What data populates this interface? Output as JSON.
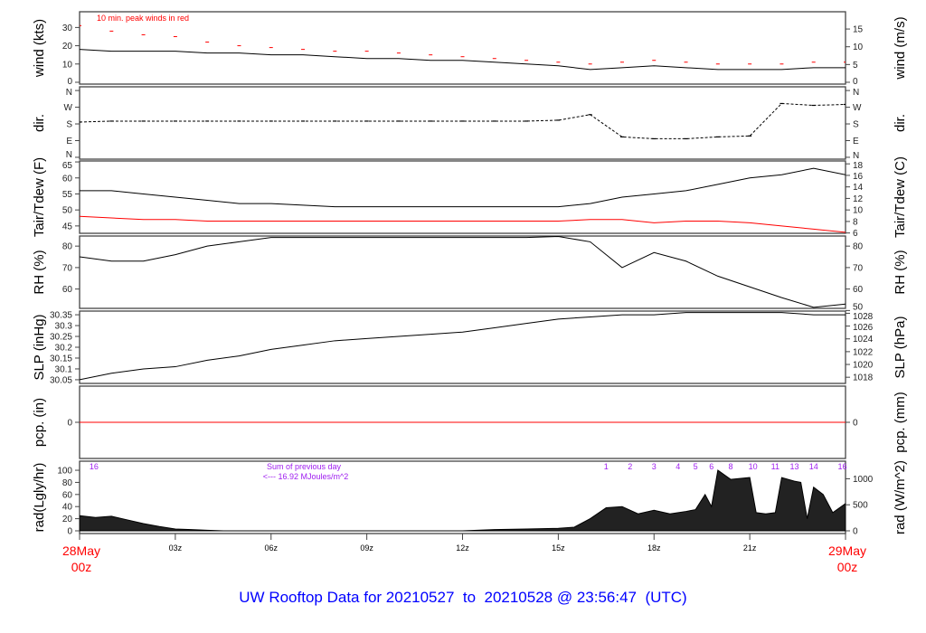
{
  "title": "UW Rooftop Data for 20210527  to  20210528 @ 23:56:47  (UTC)",
  "colors": {
    "title": "#0000ff",
    "date_labels": "#ff0000",
    "gust": "#ff0000",
    "tdew": "#ff0000",
    "pcp": "#ff0000",
    "rad_annot": "#a020f0",
    "series": "#000000"
  },
  "x_axis": {
    "ticks": [
      {
        "h": 0,
        "label": ""
      },
      {
        "h": 3,
        "label": "03z"
      },
      {
        "h": 6,
        "label": "06z"
      },
      {
        "h": 9,
        "label": "09z"
      },
      {
        "h": 12,
        "label": "12z"
      },
      {
        "h": 15,
        "label": "15z"
      },
      {
        "h": 18,
        "label": "18z"
      },
      {
        "h": 21,
        "label": "21z"
      },
      {
        "h": 24,
        "label": ""
      }
    ],
    "start_date": "28May",
    "start_time": "00z",
    "end_date": "29May",
    "end_time": "00z"
  },
  "chart_data": [
    {
      "id": "wind",
      "type": "line",
      "ylabel": "wind (kts)",
      "ylabel_right": "wind (m/s)",
      "ylim": [
        -1,
        38.6
      ],
      "yticks": [
        0,
        10,
        20,
        30
      ],
      "yticks_right": [
        0,
        5,
        10,
        15
      ],
      "annotation": "10 min. peak winds in red",
      "x_hours": [
        0,
        1,
        2,
        3,
        4,
        5,
        6,
        7,
        8,
        9,
        10,
        11,
        12,
        13,
        14,
        15,
        16,
        17,
        18,
        19,
        20,
        21,
        22,
        23,
        24
      ],
      "series": [
        {
          "key": "speed",
          "values": [
            18,
            17,
            17,
            17,
            16,
            16,
            15,
            15,
            14,
            13,
            13,
            12,
            12,
            11,
            10,
            9,
            7,
            8,
            9,
            8,
            7,
            7,
            7,
            8,
            8
          ]
        },
        {
          "key": "gust",
          "values": [
            31,
            28,
            26,
            25,
            22,
            20,
            19,
            18,
            17,
            17,
            16,
            15,
            14,
            13,
            12,
            11,
            10,
            11,
            12,
            11,
            10,
            10,
            10,
            11,
            11
          ]
        }
      ]
    },
    {
      "id": "dir",
      "type": "scatter",
      "ylabel": "dir.",
      "ylabel_right": "dir.",
      "ylim": [
        -10,
        380
      ],
      "yticks": [
        {
          "v": 0,
          "l": "N"
        },
        {
          "v": 90,
          "l": "E"
        },
        {
          "v": 180,
          "l": "S"
        },
        {
          "v": 270,
          "l": "W"
        },
        {
          "v": 360,
          "l": "N"
        }
      ],
      "x_hours": [
        0,
        1,
        2,
        3,
        4,
        5,
        6,
        7,
        8,
        9,
        10,
        11,
        12,
        13,
        14,
        15,
        16,
        17,
        18,
        19,
        20,
        21,
        22,
        23,
        24
      ],
      "series": [
        {
          "key": "dir",
          "values": [
            190,
            195,
            195,
            195,
            195,
            195,
            195,
            195,
            195,
            195,
            195,
            195,
            195,
            195,
            195,
            200,
            230,
            110,
            100,
            100,
            110,
            115,
            290,
            280,
            285
          ]
        }
      ]
    },
    {
      "id": "temp",
      "type": "line",
      "ylabel": "Tair/Tdew (F)",
      "ylabel_right": "Tair/Tdew (C)",
      "ylim": [
        42.7,
        65.3
      ],
      "yticks": [
        45,
        50,
        55,
        60,
        65
      ],
      "yticks_right": [
        6,
        8,
        10,
        12,
        14,
        16,
        18
      ],
      "x_hours": [
        0,
        1,
        2,
        3,
        4,
        5,
        6,
        7,
        8,
        9,
        10,
        11,
        12,
        13,
        14,
        15,
        16,
        17,
        18,
        19,
        20,
        21,
        22,
        23,
        24
      ],
      "series": [
        {
          "key": "tair",
          "values": [
            56,
            56,
            55,
            54,
            53,
            52,
            52,
            51.5,
            51,
            51,
            51,
            51,
            51,
            51,
            51,
            51,
            52,
            54,
            55,
            56,
            58,
            60,
            61,
            63,
            61
          ]
        },
        {
          "key": "tdew",
          "values": [
            48,
            47.5,
            47,
            47,
            46.5,
            46.5,
            46.5,
            46.5,
            46.5,
            46.5,
            46.5,
            46.5,
            46.5,
            46.5,
            46.5,
            46.5,
            47,
            47,
            46,
            46.5,
            46.5,
            46,
            45,
            44,
            43
          ]
        }
      ]
    },
    {
      "id": "rh",
      "type": "line",
      "ylabel": "RH (%)",
      "ylabel_right": "RH (%)",
      "ylim": [
        51,
        84.7
      ],
      "yticks": [
        60,
        70,
        80
      ],
      "yticks_right": [
        50,
        60,
        70,
        80
      ],
      "x_hours": [
        0,
        1,
        2,
        3,
        4,
        5,
        6,
        7,
        8,
        9,
        10,
        11,
        12,
        13,
        14,
        15,
        16,
        17,
        18,
        19,
        20,
        21,
        22,
        23,
        24
      ],
      "series": [
        {
          "key": "rh",
          "values": [
            75,
            73,
            73,
            76,
            80,
            82,
            84,
            84,
            84,
            84,
            84,
            84,
            84,
            84,
            84,
            84.5,
            82,
            70,
            77,
            73,
            66,
            61,
            56,
            51.5,
            53
          ]
        }
      ]
    },
    {
      "id": "slp",
      "type": "line",
      "ylabel": "SLP (inHg)",
      "ylabel_right": "SLP (hPa)",
      "ylim": [
        30.033,
        30.367
      ],
      "yticks": [
        30.05,
        30.1,
        30.15,
        30.2,
        30.25,
        30.3,
        30.35
      ],
      "yticks_right": [
        1018,
        1020,
        1022,
        1024,
        1026,
        1028
      ],
      "x_hours": [
        0,
        1,
        2,
        3,
        4,
        5,
        6,
        7,
        8,
        9,
        10,
        11,
        12,
        13,
        14,
        15,
        16,
        17,
        18,
        19,
        20,
        21,
        22,
        23,
        24
      ],
      "series": [
        {
          "key": "slp",
          "values": [
            30.05,
            30.08,
            30.1,
            30.11,
            30.14,
            30.16,
            30.19,
            30.21,
            30.23,
            30.24,
            30.25,
            30.26,
            30.27,
            30.29,
            30.31,
            30.33,
            30.34,
            30.35,
            30.35,
            30.36,
            30.36,
            30.36,
            30.36,
            30.35,
            30.35
          ]
        }
      ]
    },
    {
      "id": "pcp",
      "type": "line",
      "ylabel": "pcp. (in)",
      "ylabel_right": "pcp. (mm)",
      "ylim": [
        -1,
        1
      ],
      "yticks": [
        0
      ],
      "yticks_right": [
        0
      ],
      "x_hours": [
        0,
        24
      ],
      "series": [
        {
          "key": "pcp",
          "values": [
            0,
            0
          ]
        }
      ]
    },
    {
      "id": "rad",
      "type": "area",
      "ylabel": "rad(Lgly/hr)",
      "ylabel_right": "rad (W/m^2)",
      "ylim": [
        -4.5,
        115
      ],
      "yticks": [
        0,
        20,
        40,
        60,
        80,
        100
      ],
      "yticks_right": [
        0,
        500,
        1000
      ],
      "x_hours": [
        0,
        0.5,
        1,
        1.5,
        2,
        2.5,
        3,
        3.5,
        4,
        4.5,
        12,
        13,
        14,
        15,
        15.5,
        16,
        16.5,
        17,
        17.5,
        18,
        18.5,
        19,
        19.3,
        19.6,
        19.8,
        20,
        20.4,
        21,
        21.2,
        21.5,
        21.8,
        22,
        22.4,
        22.6,
        22.8,
        23,
        23.3,
        23.6,
        24
      ],
      "series": [
        {
          "key": "rad",
          "values": [
            25,
            22,
            24,
            18,
            12,
            7,
            3,
            2,
            1,
            0,
            0,
            2,
            3,
            4,
            6,
            20,
            38,
            40,
            28,
            34,
            28,
            32,
            35,
            60,
            40,
            100,
            85,
            88,
            30,
            28,
            30,
            88,
            82,
            80,
            20,
            72,
            60,
            30,
            45
          ]
        }
      ],
      "hour_marks": [
        {
          "h": 0.45,
          "l": "16"
        },
        {
          "h": 16.5,
          "l": "1"
        },
        {
          "h": 17.25,
          "l": "2"
        },
        {
          "h": 18,
          "l": "3"
        },
        {
          "h": 18.75,
          "l": "4"
        },
        {
          "h": 19.3,
          "l": "5"
        },
        {
          "h": 19.8,
          "l": "6"
        },
        {
          "h": 20.4,
          "l": "8"
        },
        {
          "h": 21.1,
          "l": "10"
        },
        {
          "h": 21.8,
          "l": "11"
        },
        {
          "h": 22.4,
          "l": "13"
        },
        {
          "h": 23,
          "l": "14"
        },
        {
          "h": 23.9,
          "l": "16"
        }
      ],
      "daily_sum_line1": "Sum of previous day",
      "daily_sum_line2": "<--- 16.92 MJoules/m^2"
    }
  ]
}
